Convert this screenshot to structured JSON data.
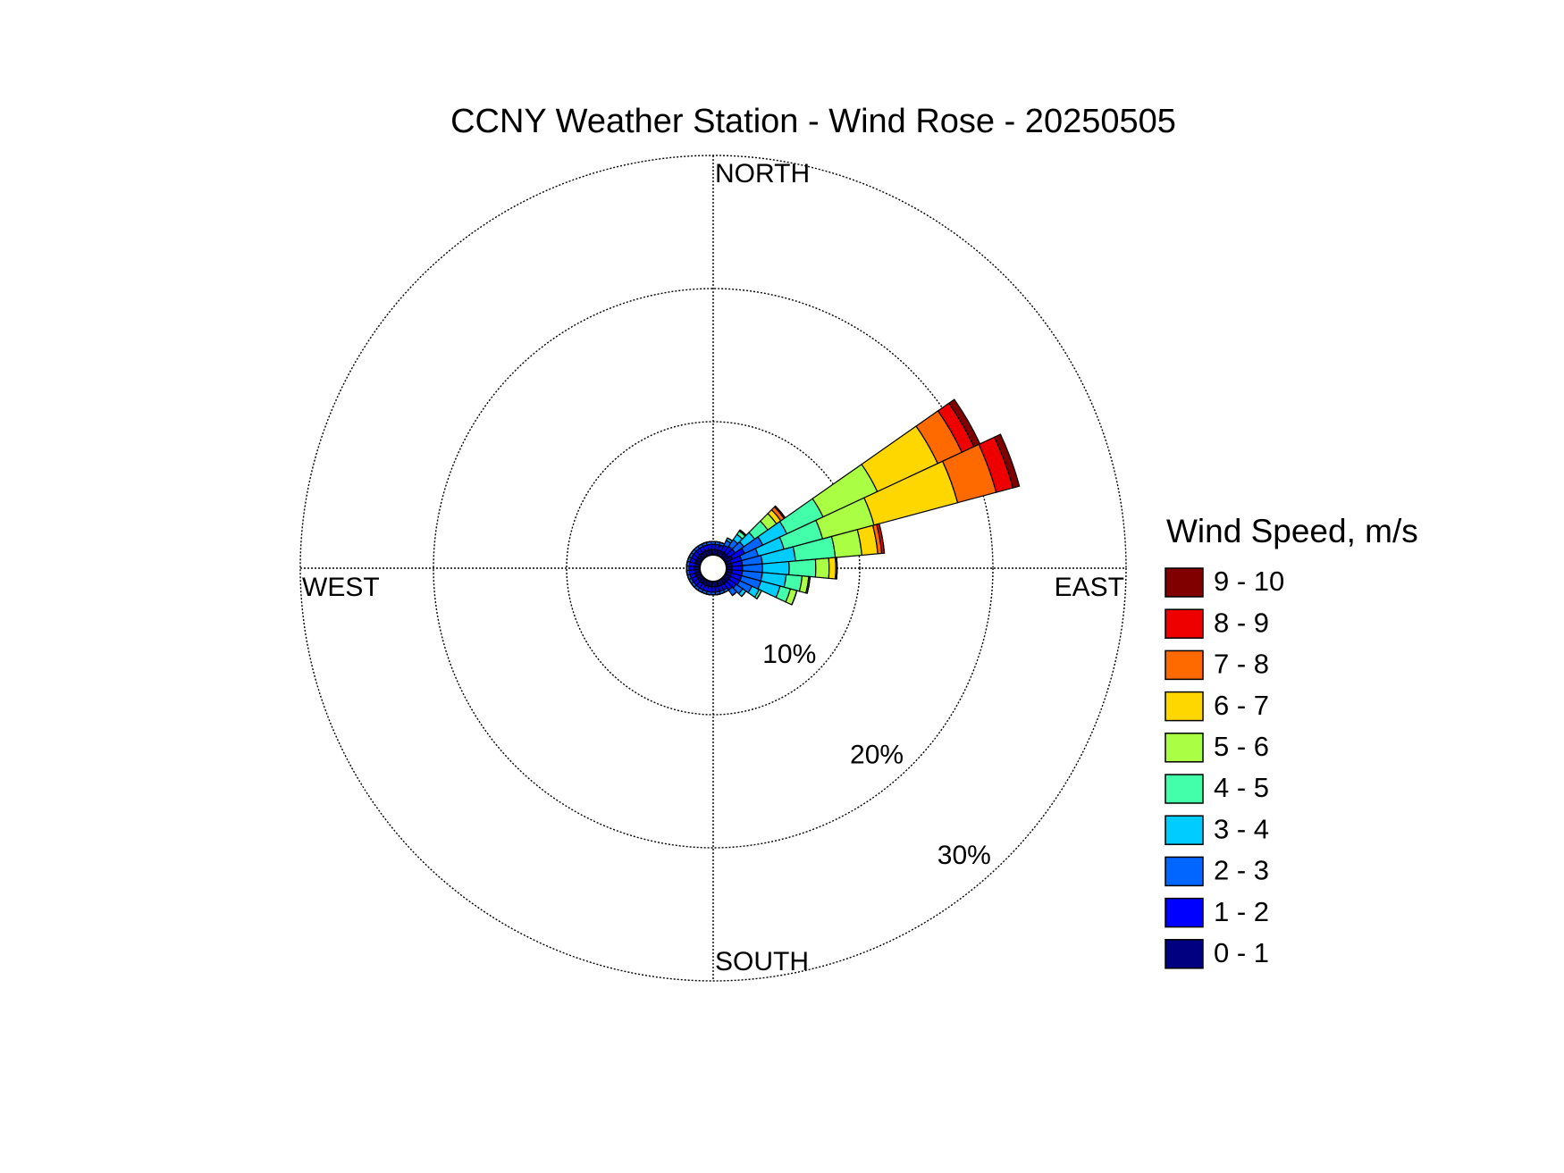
{
  "chart_data": {
    "type": "windrose",
    "title": "CCNY Weather Station - Wind Rose - 20250505",
    "direction_labels": {
      "north": "NORTH",
      "east": "EAST",
      "south": "SOUTH",
      "west": "WEST"
    },
    "rlim": [
      0,
      30
    ],
    "rticks": [
      {
        "value": 10,
        "label": "10%"
      },
      {
        "value": 20,
        "label": "20%"
      },
      {
        "value": 30,
        "label": "30%"
      }
    ],
    "legend_title": "Wind Speed, m/s",
    "legend_position": "right",
    "series": [
      {
        "name": "0 - 1",
        "color": "#000080",
        "values": [
          0.4,
          0.4,
          0.4,
          0.4,
          0.4,
          0.4,
          0.6,
          0.4,
          0.4,
          0.4,
          0.4,
          0.4,
          0.4,
          0.4,
          0.4,
          0.4,
          0.4,
          0.4,
          0.4,
          0.4,
          0.4,
          0.4,
          0.4,
          0.4,
          0.4,
          0.4,
          0.4,
          0.4,
          0.4,
          0.4,
          0.4,
          0.4,
          0.4,
          0.4,
          0.4,
          0.4
        ]
      },
      {
        "name": "1 - 2",
        "color": "#0000ff",
        "values": [
          0.4,
          0.4,
          0.4,
          0.5,
          0.6,
          0.6,
          1.0,
          0.8,
          0.8,
          0.8,
          0.8,
          0.8,
          0.8,
          0.7,
          0.6,
          0.4,
          0.4,
          0.4,
          0.4,
          0.4,
          0.4,
          0.4,
          0.4,
          0.4,
          0.4,
          0.4,
          0.4,
          0.4,
          0.4,
          0.4,
          0.4,
          0.4,
          0.4,
          0.4,
          0.4,
          0.4
        ]
      },
      {
        "name": "2 - 3",
        "color": "#0066ff",
        "values": [
          0.2,
          0.2,
          0.2,
          0.4,
          0.6,
          0.8,
          1.5,
          1.3,
          1.5,
          1.5,
          1.5,
          1.5,
          1.0,
          0.6,
          0.5,
          0.2,
          0.2,
          0.2,
          0.2,
          0.2,
          0.2,
          0.2,
          0.2,
          0.2,
          0.2,
          0.2,
          0.2,
          0.2,
          0.2,
          0.2,
          0.2,
          0.2,
          0.2,
          0.2,
          0.2,
          0.2
        ]
      },
      {
        "name": "3 - 4",
        "color": "#00ccff",
        "values": [
          0,
          0,
          0,
          0.2,
          0.5,
          1.0,
          2.0,
          2.0,
          2.5,
          2.0,
          1.8,
          1.5,
          0.6,
          0.3,
          0,
          0,
          0,
          0,
          0,
          0,
          0,
          0,
          0,
          0,
          0,
          0,
          0,
          0,
          0,
          0,
          0,
          0,
          0,
          0,
          0,
          0
        ]
      },
      {
        "name": "4 - 5",
        "color": "#44ffaa",
        "values": [
          0,
          0,
          0,
          0,
          0.3,
          1.2,
          3.0,
          3.0,
          3.0,
          2.0,
          1.2,
          0.8,
          0.2,
          0,
          0,
          0,
          0,
          0,
          0,
          0,
          0,
          0,
          0,
          0,
          0,
          0,
          0,
          0,
          0,
          0,
          0,
          0,
          0,
          0,
          0,
          0
        ]
      },
      {
        "name": "5 - 6",
        "color": "#aaff44",
        "values": [
          0,
          0,
          0,
          0,
          0.1,
          0.8,
          4.5,
          4.0,
          2.0,
          1.0,
          0.5,
          0.5,
          0,
          0,
          0,
          0,
          0,
          0,
          0,
          0,
          0,
          0,
          0,
          0,
          0,
          0,
          0,
          0,
          0,
          0,
          0,
          0,
          0,
          0,
          0,
          0
        ]
      },
      {
        "name": "6 - 7",
        "color": "#ffd700",
        "values": [
          0,
          0,
          0,
          0,
          0,
          0.4,
          5.0,
          6.5,
          1.2,
          0.5,
          0.1,
          0,
          0,
          0,
          0,
          0,
          0,
          0,
          0,
          0,
          0,
          0,
          0,
          0,
          0,
          0,
          0,
          0,
          0,
          0,
          0,
          0,
          0,
          0,
          0,
          0
        ]
      },
      {
        "name": "7 - 8",
        "color": "#ff6a00",
        "values": [
          0,
          0,
          0,
          0,
          0,
          0.3,
          2.0,
          3.0,
          0.3,
          0.1,
          0,
          0,
          0,
          0,
          0,
          0,
          0,
          0,
          0,
          0,
          0,
          0,
          0,
          0,
          0,
          0,
          0,
          0,
          0,
          0,
          0,
          0,
          0,
          0,
          0,
          0
        ]
      },
      {
        "name": "8 - 9",
        "color": "#ee0000",
        "values": [
          0,
          0,
          0,
          0,
          0,
          0.1,
          1.0,
          1.3,
          0.2,
          0,
          0,
          0,
          0,
          0,
          0,
          0,
          0,
          0,
          0,
          0,
          0,
          0,
          0,
          0,
          0,
          0,
          0,
          0,
          0,
          0,
          0,
          0,
          0,
          0,
          0,
          0
        ]
      },
      {
        "name": "9 - 10",
        "color": "#800000",
        "values": [
          0,
          0,
          0,
          0,
          0,
          0,
          0.5,
          0.5,
          0,
          0,
          0,
          0,
          0,
          0,
          0,
          0,
          0,
          0,
          0,
          0,
          0,
          0,
          0,
          0,
          0,
          0,
          0,
          0,
          0,
          0,
          0,
          0,
          0,
          0,
          0,
          0
        ]
      }
    ]
  }
}
